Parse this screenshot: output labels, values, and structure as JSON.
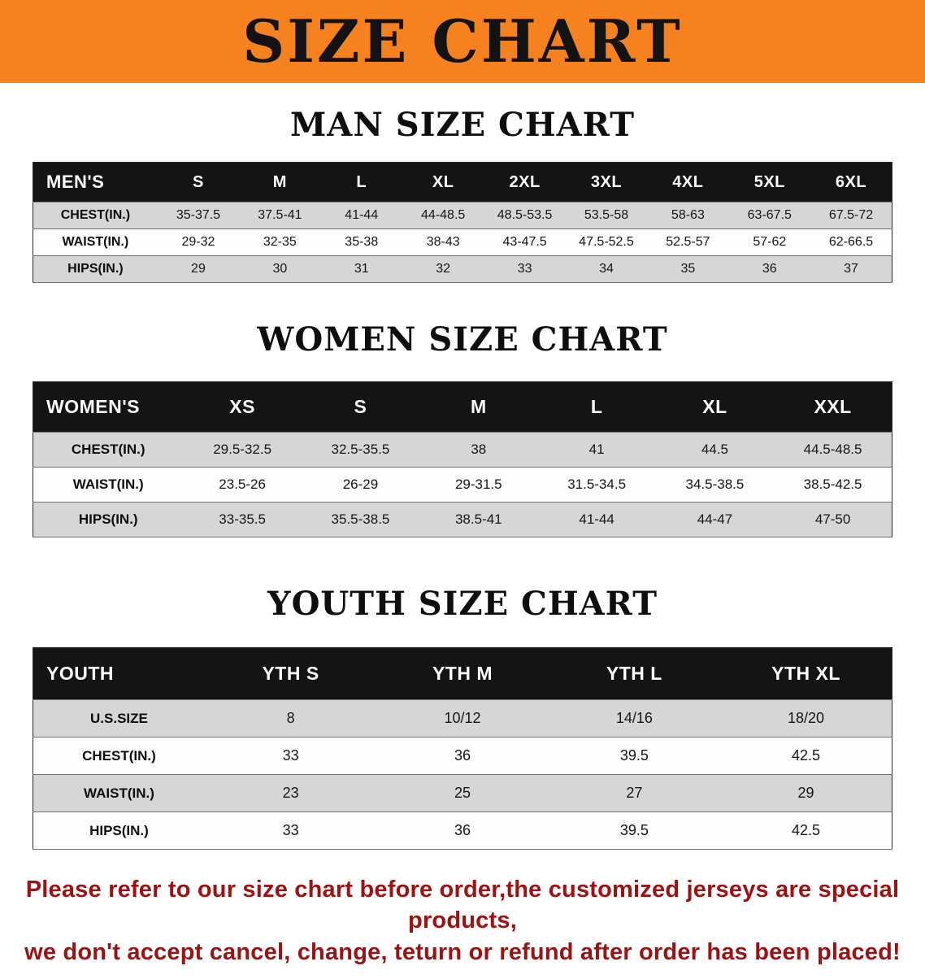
{
  "banner": {
    "title": "SIZE CHART",
    "bg_color": "#f5821f",
    "text_color": "#131313"
  },
  "sections": [
    {
      "id": "men",
      "heading": "MAN SIZE CHART",
      "table": {
        "header": [
          "MEN'S",
          "S",
          "M",
          "L",
          "XL",
          "2XL",
          "3XL",
          "4XL",
          "5XL",
          "6XL"
        ],
        "rows": [
          {
            "label": "CHEST(IN.)",
            "values": [
              "35-37.5",
              "37.5-41",
              "41-44",
              "44-48.5",
              "48.5-53.5",
              "53.5-58",
              "58-63",
              "63-67.5",
              "67.5-72"
            ]
          },
          {
            "label": "WAIST(IN.)",
            "values": [
              "29-32",
              "32-35",
              "35-38",
              "38-43",
              "43-47.5",
              "47.5-52.5",
              "52.5-57",
              "57-62",
              "62-66.5"
            ]
          },
          {
            "label": "HIPS(IN.)",
            "values": [
              "29",
              "30",
              "31",
              "32",
              "33",
              "34",
              "35",
              "36",
              "37"
            ]
          }
        ]
      }
    },
    {
      "id": "women",
      "heading": "WOMEN SIZE CHART",
      "table": {
        "header": [
          "WOMEN'S",
          "XS",
          "S",
          "M",
          "L",
          "XL",
          "XXL"
        ],
        "rows": [
          {
            "label": "CHEST(IN.)",
            "values": [
              "29.5-32.5",
              "32.5-35.5",
              "38",
              "41",
              "44.5",
              "44.5-48.5"
            ]
          },
          {
            "label": "WAIST(IN.)",
            "values": [
              "23.5-26",
              "26-29",
              "29-31.5",
              "31.5-34.5",
              "34.5-38.5",
              "38.5-42.5"
            ]
          },
          {
            "label": "HIPS(IN.)",
            "values": [
              "33-35.5",
              "35.5-38.5",
              "38.5-41",
              "41-44",
              "44-47",
              "47-50"
            ]
          }
        ]
      }
    },
    {
      "id": "youth",
      "heading": "YOUTH SIZE CHART",
      "table": {
        "header": [
          "YOUTH",
          "YTH S",
          "YTH M",
          "YTH L",
          "YTH XL"
        ],
        "rows": [
          {
            "label": "U.S.SIZE",
            "values": [
              "8",
              "10/12",
              "14/16",
              "18/20"
            ]
          },
          {
            "label": "CHEST(IN.)",
            "values": [
              "33",
              "36",
              "39.5",
              "42.5"
            ]
          },
          {
            "label": "WAIST(IN.)",
            "values": [
              "23",
              "25",
              "27",
              "29"
            ]
          },
          {
            "label": "HIPS(IN.)",
            "values": [
              "33",
              "36",
              "39.5",
              "42.5"
            ]
          }
        ]
      }
    }
  ],
  "disclaimer": {
    "line1": "Please refer to our size chart before order,the customized jerseys are special products,",
    "line2": "we don't accept cancel, change, teturn or refund after order has been placed!",
    "text_color": "#a01212"
  },
  "colors": {
    "header_row_bg": "#141414",
    "header_row_text": "#ffffff",
    "row_alt_bg": "#d6d6d6",
    "row_bg": "#fdfdfd"
  }
}
